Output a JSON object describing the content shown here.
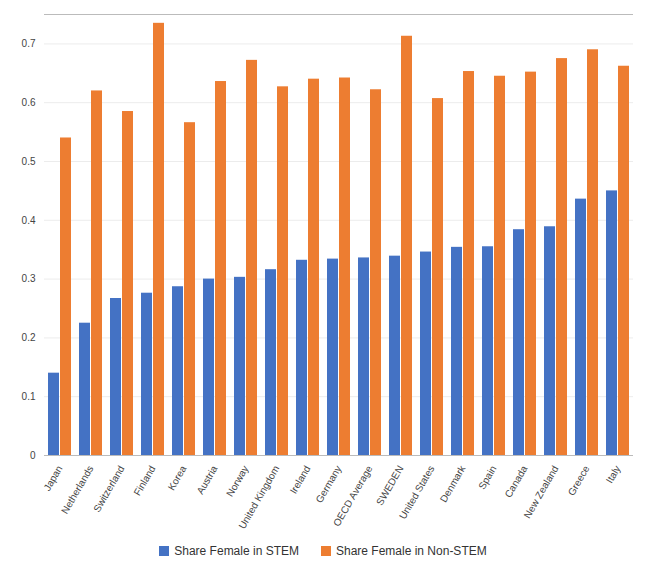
{
  "chart_data": {
    "type": "bar",
    "categories": [
      "Japan",
      "Netherlands",
      "Switzerland",
      "Finland",
      "Korea",
      "Austria",
      "Norway",
      "United Kingdom",
      "Ireland",
      "Germany",
      "OECD Average",
      "SWEDEN",
      "United States",
      "Denmark",
      "Spain",
      "Canada",
      "New Zealand",
      "Greece",
      "Italy"
    ],
    "series": [
      {
        "name": "Share Female in STEM",
        "color": "#4472c4",
        "values": [
          0.14,
          0.225,
          0.267,
          0.276,
          0.287,
          0.3,
          0.303,
          0.316,
          0.332,
          0.334,
          0.336,
          0.339,
          0.346,
          0.354,
          0.355,
          0.384,
          0.389,
          0.436,
          0.45
        ]
      },
      {
        "name": "Share Female in Non-STEM",
        "color": "#ed7d31",
        "values": [
          0.54,
          0.62,
          0.585,
          0.735,
          0.566,
          0.636,
          0.672,
          0.627,
          0.64,
          0.642,
          0.622,
          0.713,
          0.607,
          0.653,
          0.645,
          0.652,
          0.675,
          0.69,
          0.662
        ]
      }
    ],
    "ylim": [
      0,
      0.75
    ],
    "yticks": [
      0,
      0.1,
      0.2,
      0.3,
      0.4,
      0.5,
      0.6,
      0.7
    ],
    "grid": true,
    "legend": "bottom"
  }
}
